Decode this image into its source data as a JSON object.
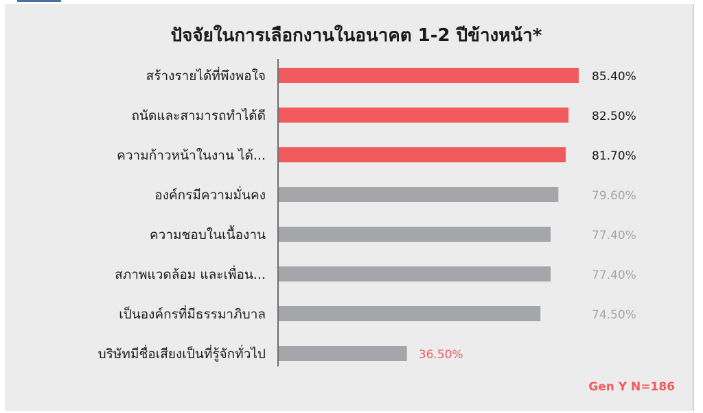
{
  "chart_data": {
    "type": "bar",
    "orientation": "horizontal",
    "title": "ปัจจัยในการเลือกงานในอนาคต 1-2 ปีข้างหน้า*",
    "categories": [
      "สร้างรายได้ที่พึงพอใจ",
      "ถนัดและสามารถทำได้ดี",
      "ความก้าวหน้าในงาน ได้...",
      "องค์กรมีความมั่นคง",
      "ความชอบในเนื้องาน",
      "สภาพแวดล้อม และเพื่อน...",
      "เป็นองค์กรที่มีธรรมาภิบาล",
      "บริษัทมีชื่อเสียงเป็นที่รู้จักทั่วไป"
    ],
    "values": [
      85.4,
      82.5,
      81.7,
      79.6,
      77.4,
      77.4,
      74.5,
      36.5
    ],
    "value_labels": [
      "85.40%",
      "82.50%",
      "81.70%",
      "79.60%",
      "77.40%",
      "77.40%",
      "74.50%",
      "36.50%"
    ],
    "xlim": [
      0,
      100
    ],
    "grid": false,
    "colors": {
      "highlight": "#f15b5e",
      "normal": "#a5a6aa",
      "label_dark": "#1a1a1a",
      "label_muted": "#a5a6aa",
      "label_accent": "#f15b5e",
      "axis": "#444444"
    },
    "highlight_top_n": 3,
    "note": "Gen Y N=186"
  }
}
